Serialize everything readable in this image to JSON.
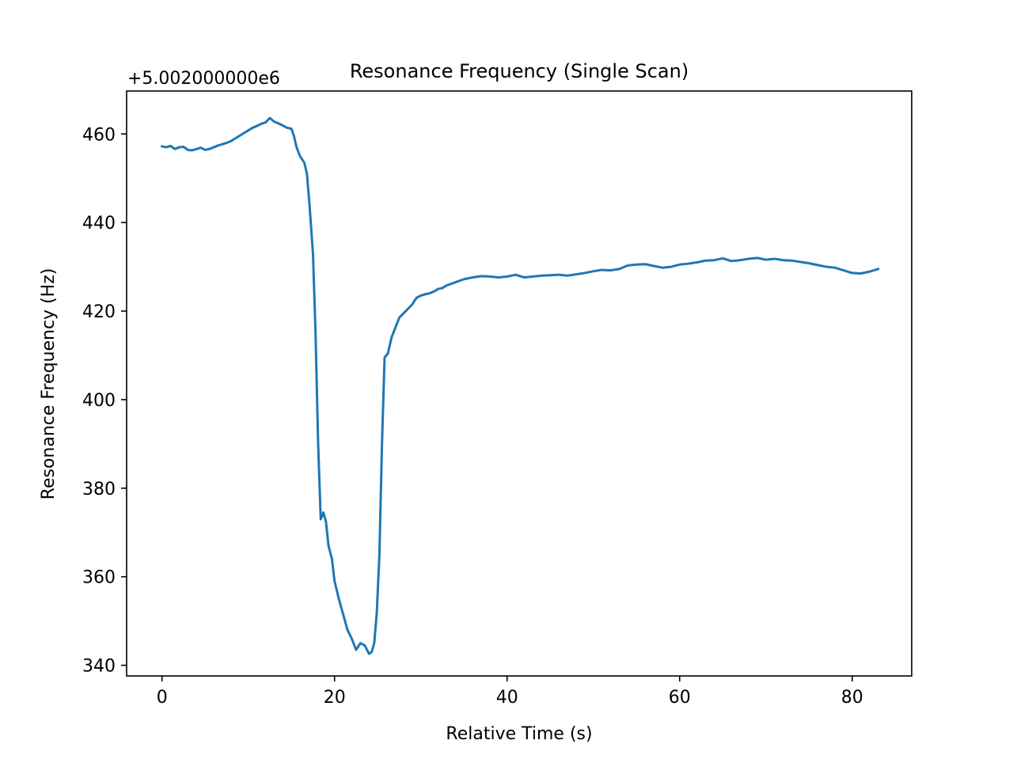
{
  "chart_data": {
    "type": "line",
    "title": "Resonance Frequency (Single Scan)",
    "xlabel": "Relative Time (s)",
    "ylabel": "Resonance Frequency (Hz)",
    "y_offset_label": "+5.002000000e6",
    "xlim": [
      -4.1,
      86.9
    ],
    "ylim": [
      337.6,
      469.7
    ],
    "xticks": [
      0,
      20,
      40,
      60,
      80
    ],
    "yticks": [
      340,
      360,
      380,
      400,
      420,
      440,
      460
    ],
    "grid": false,
    "legend": "none",
    "series": [
      {
        "color": "#1f77b4",
        "points": [
          [
            0.0,
            457.2
          ],
          [
            0.5,
            457.0
          ],
          [
            1.0,
            457.3
          ],
          [
            1.5,
            456.6
          ],
          [
            2.0,
            457.0
          ],
          [
            2.5,
            457.1
          ],
          [
            3.0,
            456.4
          ],
          [
            3.5,
            456.3
          ],
          [
            4.0,
            456.6
          ],
          [
            4.5,
            456.9
          ],
          [
            5.0,
            456.4
          ],
          [
            5.5,
            456.6
          ],
          [
            6.0,
            457.0
          ],
          [
            6.5,
            457.4
          ],
          [
            7.0,
            457.7
          ],
          [
            7.5,
            458.0
          ],
          [
            8.0,
            458.4
          ],
          [
            8.5,
            459.0
          ],
          [
            9.0,
            459.6
          ],
          [
            9.5,
            460.2
          ],
          [
            10.0,
            460.8
          ],
          [
            10.5,
            461.4
          ],
          [
            11.0,
            461.8
          ],
          [
            11.5,
            462.3
          ],
          [
            12.0,
            462.6
          ],
          [
            12.5,
            463.6
          ],
          [
            13.0,
            462.8
          ],
          [
            13.5,
            462.4
          ],
          [
            14.0,
            461.9
          ],
          [
            14.5,
            461.4
          ],
          [
            15.0,
            461.2
          ],
          [
            15.3,
            459.5
          ],
          [
            15.6,
            457.0
          ],
          [
            16.0,
            455.0
          ],
          [
            16.5,
            453.5
          ],
          [
            16.8,
            451.0
          ],
          [
            17.1,
            444.0
          ],
          [
            17.5,
            433.0
          ],
          [
            17.8,
            415.0
          ],
          [
            18.1,
            390.0
          ],
          [
            18.4,
            373.0
          ],
          [
            18.7,
            374.5
          ],
          [
            19.0,
            372.5
          ],
          [
            19.3,
            367.0
          ],
          [
            19.7,
            364.0
          ],
          [
            20.0,
            359.0
          ],
          [
            20.5,
            355.0
          ],
          [
            21.0,
            351.5
          ],
          [
            21.5,
            348.0
          ],
          [
            22.0,
            346.0
          ],
          [
            22.5,
            343.5
          ],
          [
            23.0,
            345.0
          ],
          [
            23.5,
            344.5
          ],
          [
            24.0,
            342.6
          ],
          [
            24.3,
            343.0
          ],
          [
            24.6,
            345.0
          ],
          [
            24.9,
            352.0
          ],
          [
            25.2,
            365.0
          ],
          [
            25.5,
            390.0
          ],
          [
            25.8,
            409.5
          ],
          [
            26.2,
            410.5
          ],
          [
            26.6,
            414.0
          ],
          [
            27.0,
            416.0
          ],
          [
            27.5,
            418.5
          ],
          [
            28.0,
            419.5
          ],
          [
            28.5,
            420.5
          ],
          [
            29.0,
            421.5
          ],
          [
            29.5,
            423.0
          ],
          [
            30.0,
            423.5
          ],
          [
            30.5,
            423.8
          ],
          [
            31.0,
            424.0
          ],
          [
            31.5,
            424.4
          ],
          [
            32.0,
            425.0
          ],
          [
            32.5,
            425.2
          ],
          [
            33.0,
            425.8
          ],
          [
            34.0,
            426.5
          ],
          [
            35.0,
            427.2
          ],
          [
            36.0,
            427.6
          ],
          [
            37.0,
            427.9
          ],
          [
            38.0,
            427.8
          ],
          [
            39.0,
            427.6
          ],
          [
            40.0,
            427.8
          ],
          [
            41.0,
            428.2
          ],
          [
            42.0,
            427.6
          ],
          [
            43.0,
            427.8
          ],
          [
            44.0,
            428.0
          ],
          [
            45.0,
            428.1
          ],
          [
            46.0,
            428.2
          ],
          [
            47.0,
            428.0
          ],
          [
            48.0,
            428.3
          ],
          [
            49.0,
            428.6
          ],
          [
            50.0,
            429.0
          ],
          [
            51.0,
            429.3
          ],
          [
            52.0,
            429.2
          ],
          [
            53.0,
            429.5
          ],
          [
            54.0,
            430.3
          ],
          [
            55.0,
            430.5
          ],
          [
            56.0,
            430.6
          ],
          [
            57.0,
            430.2
          ],
          [
            58.0,
            429.8
          ],
          [
            59.0,
            430.0
          ],
          [
            60.0,
            430.5
          ],
          [
            61.0,
            430.7
          ],
          [
            62.0,
            431.0
          ],
          [
            63.0,
            431.4
          ],
          [
            64.0,
            431.5
          ],
          [
            65.0,
            431.9
          ],
          [
            66.0,
            431.3
          ],
          [
            67.0,
            431.5
          ],
          [
            68.0,
            431.8
          ],
          [
            69.0,
            432.0
          ],
          [
            70.0,
            431.6
          ],
          [
            71.0,
            431.8
          ],
          [
            72.0,
            431.5
          ],
          [
            73.0,
            431.4
          ],
          [
            74.0,
            431.1
          ],
          [
            75.0,
            430.8
          ],
          [
            76.0,
            430.4
          ],
          [
            77.0,
            430.0
          ],
          [
            78.0,
            429.8
          ],
          [
            79.0,
            429.2
          ],
          [
            80.0,
            428.6
          ],
          [
            81.0,
            428.5
          ],
          [
            82.0,
            428.9
          ],
          [
            83.0,
            429.5
          ]
        ]
      }
    ]
  }
}
